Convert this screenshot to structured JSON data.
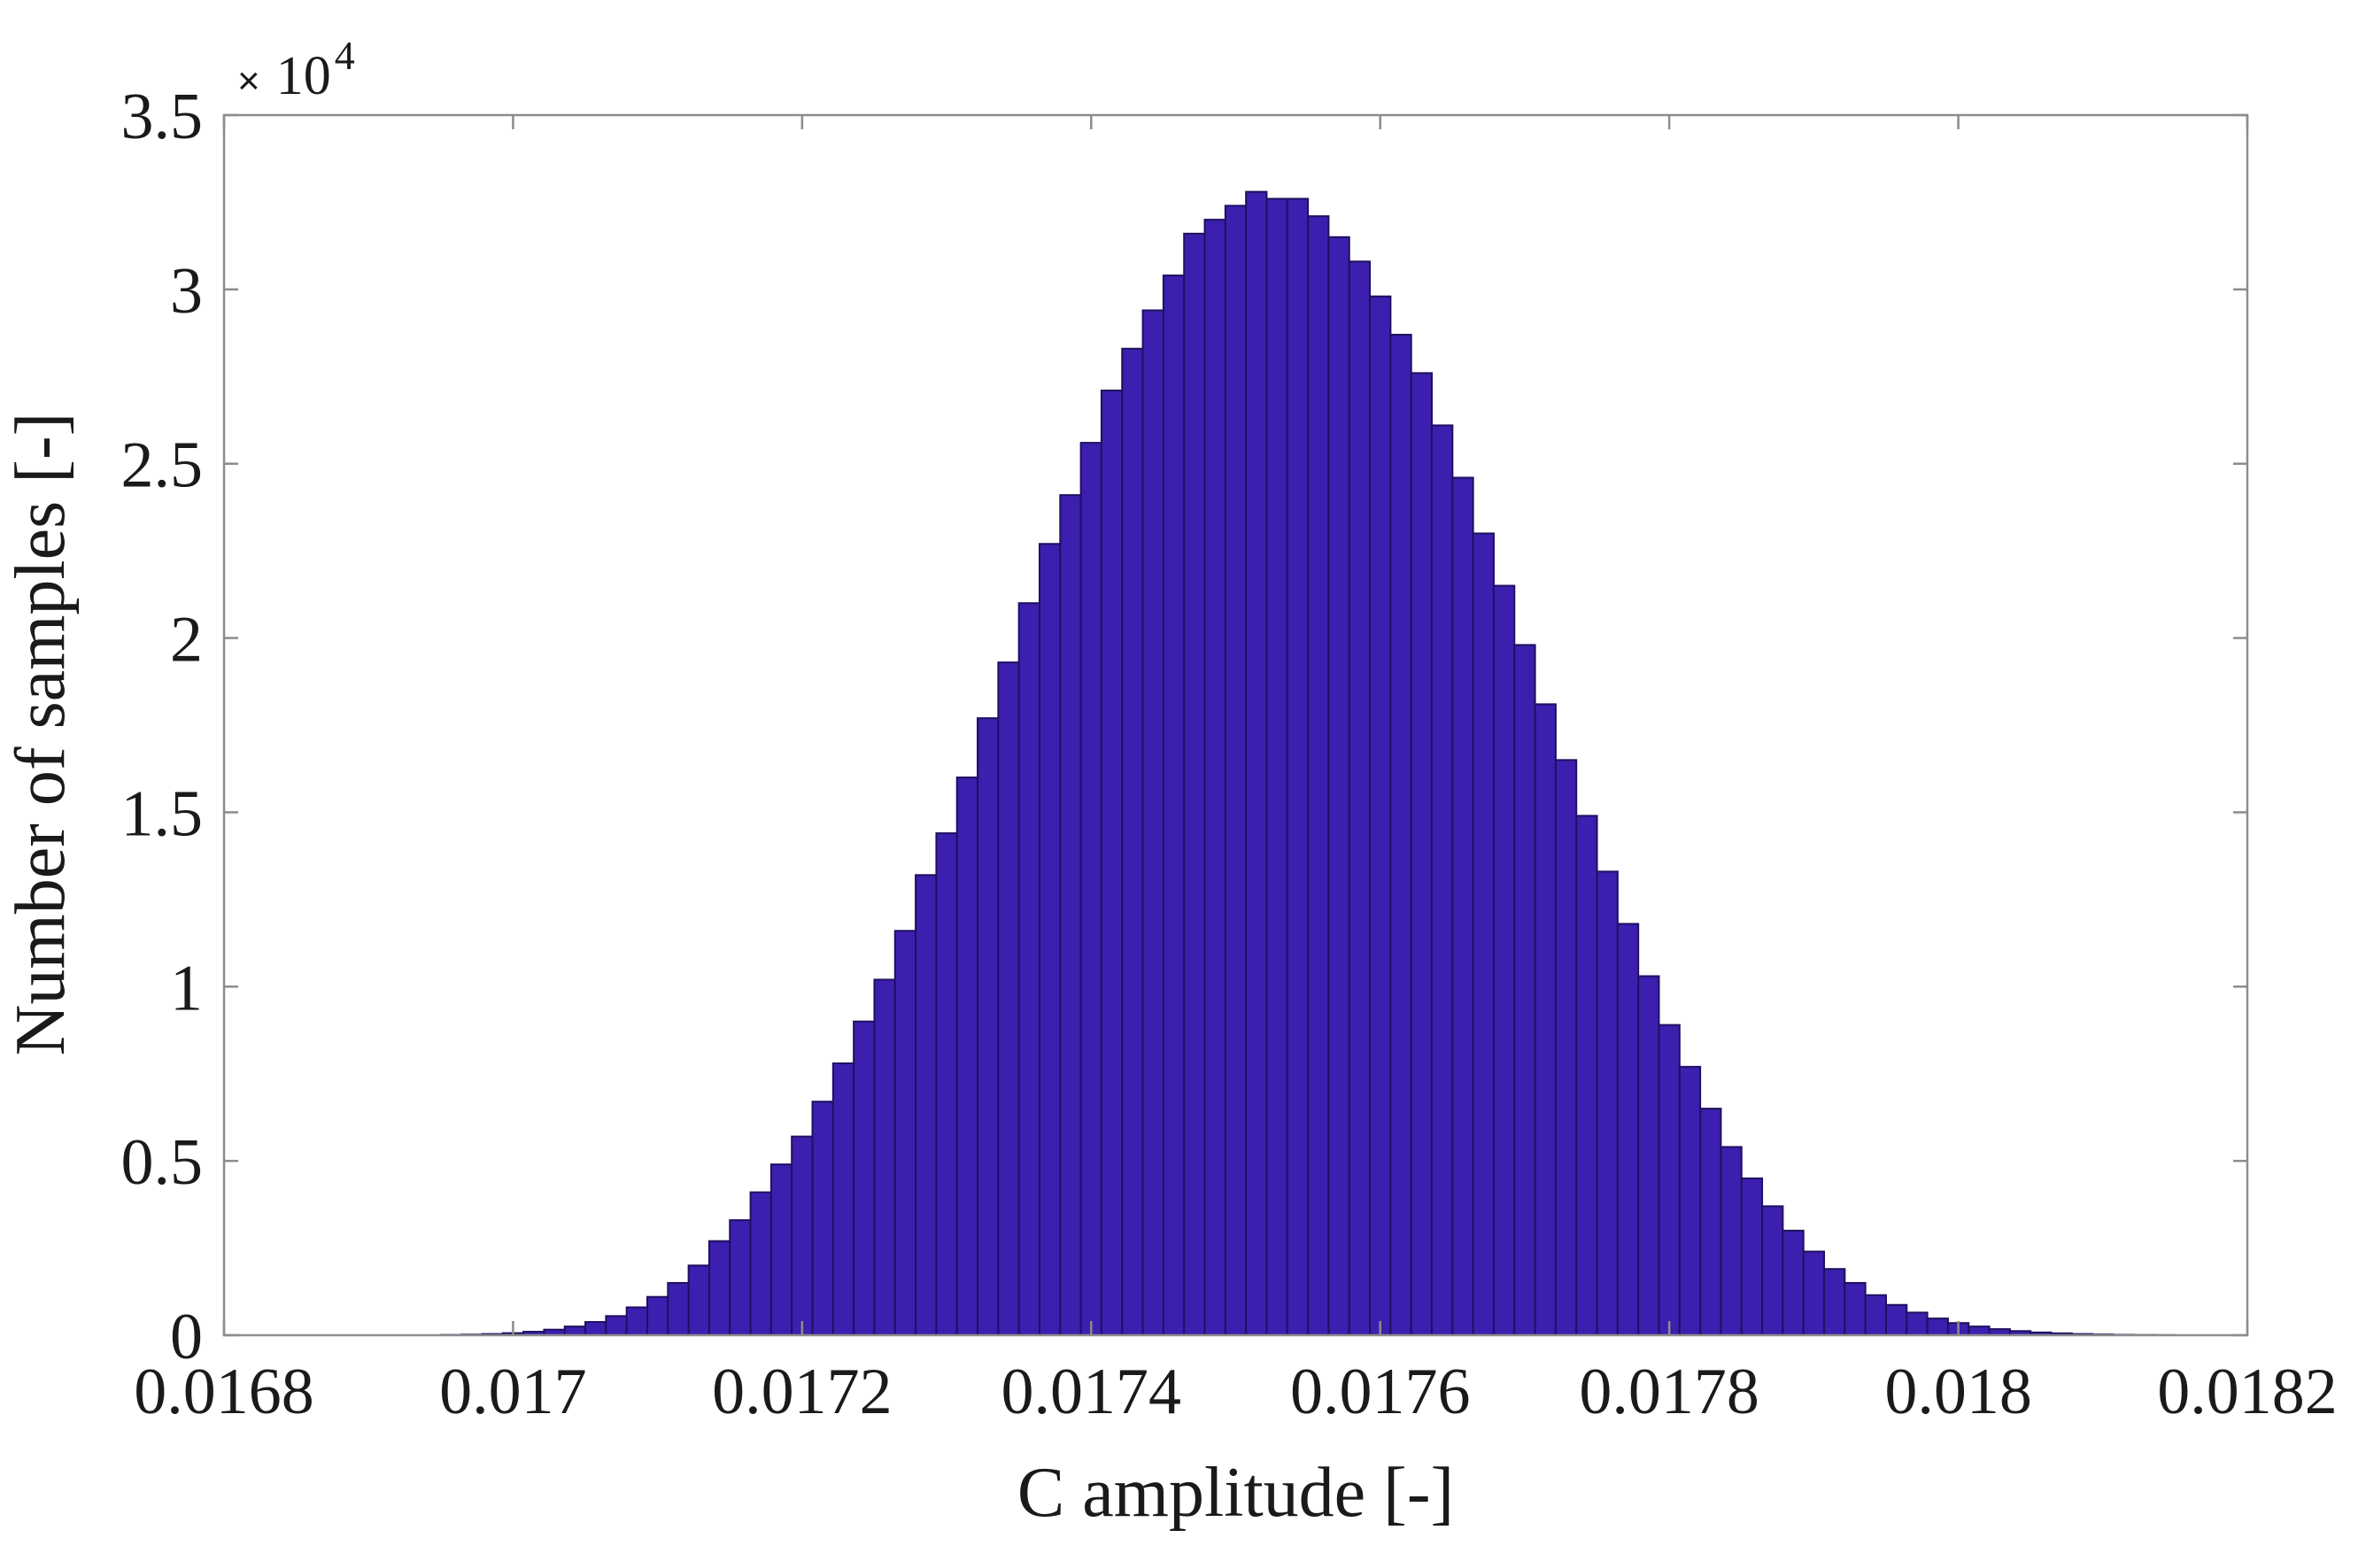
{
  "chart_data": {
    "type": "bar",
    "xlabel": "C amplitude [-]",
    "ylabel": "Number of samples [-]",
    "xlim": [
      0.0168,
      0.0182
    ],
    "ylim": [
      0,
      35000
    ],
    "x_ticks": [
      0.0168,
      0.017,
      0.0172,
      0.0174,
      0.0176,
      0.0178,
      0.018,
      0.0182
    ],
    "x_tick_labels": [
      "0.0168",
      "0.017",
      "0.0172",
      "0.0174",
      "0.0176",
      "0.0178",
      "0.018",
      "0.0182"
    ],
    "y_ticks": [
      0,
      5000,
      10000,
      15000,
      20000,
      25000,
      30000,
      35000
    ],
    "y_tick_labels": [
      "0",
      "0.5",
      "1",
      "1.5",
      "2",
      "2.5",
      "3",
      "3.5"
    ],
    "y_exponent": {
      "times": "×",
      "base": "10",
      "power": "4"
    },
    "grid": false,
    "bar_color": "#3c1fae",
    "bar_edge_color": "#1f1060",
    "bin_edges": [
      0.01695,
      0.01815
    ],
    "values": [
      10,
      20,
      35,
      60,
      100,
      160,
      250,
      380,
      550,
      800,
      1100,
      1500,
      2000,
      2700,
      3300,
      4100,
      4900,
      5700,
      6700,
      7800,
      9000,
      10200,
      11600,
      13200,
      14400,
      16000,
      17700,
      19300,
      21000,
      22700,
      24100,
      25600,
      27100,
      28300,
      29400,
      30400,
      31600,
      32000,
      32400,
      32800,
      32600,
      32600,
      32100,
      31500,
      30800,
      29800,
      28700,
      27600,
      26100,
      24600,
      23000,
      21500,
      19800,
      18100,
      16500,
      14900,
      13300,
      11800,
      10300,
      8900,
      7700,
      6500,
      5400,
      4500,
      3700,
      3000,
      2400,
      1900,
      1500,
      1150,
      870,
      650,
      480,
      350,
      250,
      175,
      120,
      80,
      55,
      35,
      22,
      14,
      8,
      5
    ]
  }
}
